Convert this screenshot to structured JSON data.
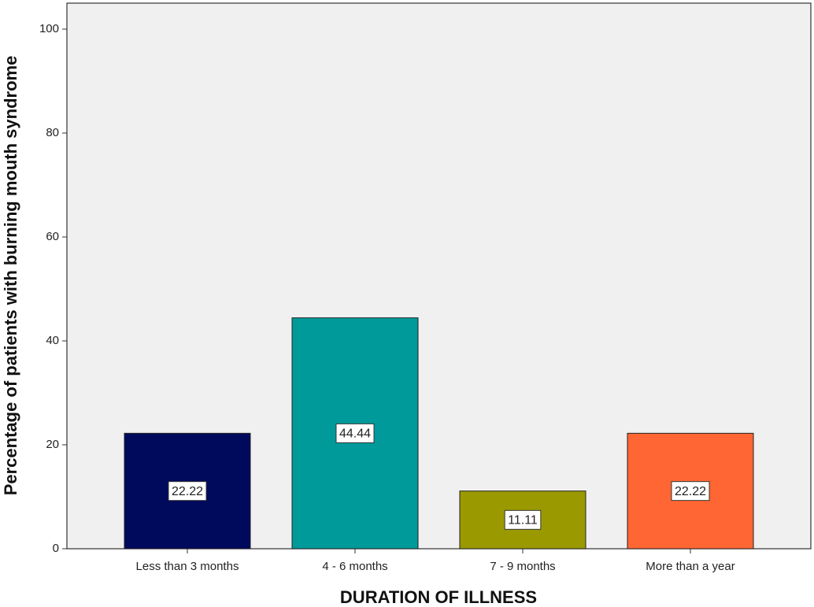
{
  "chart_data": {
    "type": "bar",
    "x_label": "DURATION OF ILLNESS",
    "y_label": "Percentage of patients with burning mouth syndrome",
    "categories": [
      "Less than 3 months",
      "4 - 6 months",
      "7 - 9 months",
      "More than a year"
    ],
    "values": [
      22.22,
      44.44,
      11.11,
      22.22
    ],
    "colors": [
      "#000a5c",
      "#009a9a",
      "#9a9a00",
      "#ff6633"
    ],
    "ylim": [
      0,
      105
    ],
    "yticks": [
      0,
      20,
      40,
      60,
      80,
      100
    ]
  }
}
